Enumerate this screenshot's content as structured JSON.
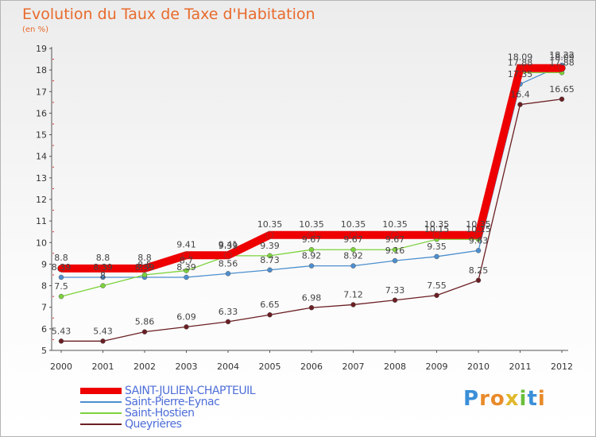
{
  "chart_data": {
    "type": "line",
    "title": "Evolution du Taux de Taxe d'Habitation",
    "ylabel": "(en %)",
    "xlabel": "",
    "ylim": [
      5,
      19
    ],
    "yticks": [
      "5",
      "6",
      "7",
      "8",
      "9",
      "10",
      "11",
      "12",
      "13",
      "14",
      "15",
      "16",
      "17",
      "18",
      "19"
    ],
    "x": [
      "2000",
      "2001",
      "2002",
      "2003",
      "2004",
      "2005",
      "2006",
      "2007",
      "2008",
      "2009",
      "2010",
      "2011",
      "2012"
    ],
    "grid": false,
    "legend_position": "bottom-left",
    "series": [
      {
        "name": "SAINT-JULIEN-CHAPTEUIL",
        "color": "#ee0000",
        "values": [
          8.8,
          8.8,
          8.8,
          9.41,
          9.41,
          10.35,
          10.35,
          10.35,
          10.35,
          10.35,
          10.35,
          18.09,
          18.09
        ],
        "labels": [
          "8.8",
          "8.8",
          "8.8",
          "9.41",
          "9.41",
          "10.35",
          "10.35",
          "10.35",
          "10.35",
          "10.35",
          "10.35",
          "18.09",
          "18.09"
        ]
      },
      {
        "name": "Saint-Pierre-Eynac",
        "color": "#4c8fcf",
        "values": [
          8.39,
          8.39,
          8.39,
          8.39,
          8.56,
          8.73,
          8.92,
          8.92,
          9.16,
          9.35,
          9.63,
          17.35,
          18.22
        ],
        "labels": [
          "8.39",
          "8.39",
          "8.39",
          "8.39",
          "8.56",
          "8.73",
          "8.92",
          "8.92",
          "9.16",
          "9.35",
          "9.63",
          "17.35",
          "18.22"
        ]
      },
      {
        "name": "Saint-Hostien",
        "color": "#7cd33c",
        "values": [
          7.5,
          8.0,
          8.5,
          8.7,
          9.39,
          9.39,
          9.67,
          9.67,
          9.67,
          10.15,
          10.15,
          17.88,
          17.88
        ],
        "labels": [
          "7.5",
          "8",
          "8.5",
          "8.7",
          "9.39",
          "9.39",
          "9.67",
          "9.67",
          "9.67",
          "10.15",
          "10.15",
          "17.88",
          "17.88"
        ]
      },
      {
        "name": "Queyrières",
        "color": "#6b1e23",
        "values": [
          5.43,
          5.43,
          5.86,
          6.09,
          6.33,
          6.65,
          6.98,
          7.12,
          7.33,
          7.55,
          8.25,
          16.4,
          16.65
        ],
        "labels": [
          "5.43",
          "5.43",
          "5.86",
          "6.09",
          "6.33",
          "6.65",
          "6.98",
          "7.12",
          "7.33",
          "7.55",
          "8.25",
          "16.4",
          "16.65"
        ]
      }
    ]
  },
  "brand": {
    "letters": [
      "P",
      "r",
      "o",
      "x",
      "i",
      "t",
      "i"
    ],
    "colors": [
      "#3a8fd8",
      "#e98a2a",
      "#e98a2a",
      "#e0b82a",
      "#6abf3a",
      "#3a8fd8",
      "#e98a2a"
    ]
  }
}
